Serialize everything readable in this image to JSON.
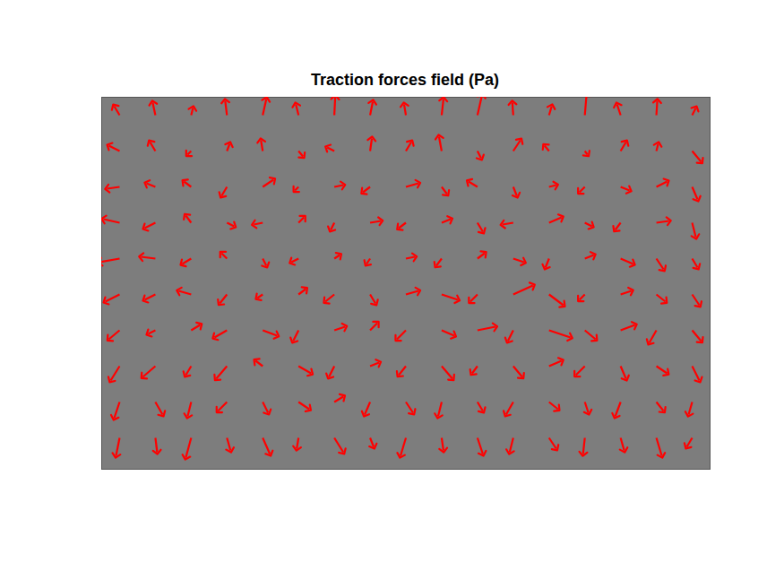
{
  "chart_data": {
    "type": "quiver",
    "title": "Traction forces field (Pa)",
    "color": "#ff0000",
    "tick_labels": false,
    "xlim": [
      0,
      680
    ],
    "ylim": [
      415,
      0
    ],
    "x": [
      20,
      60,
      100,
      140,
      180,
      220,
      260,
      300,
      340,
      380,
      420,
      460,
      500,
      540,
      580,
      620,
      660
    ],
    "y": [
      20,
      60,
      100,
      140,
      180,
      220,
      260,
      300,
      340,
      380
    ],
    "u": [
      [
        -6,
        -3,
        2,
        -2,
        4,
        -3,
        1,
        3,
        -2,
        2,
        5,
        -1,
        3,
        2,
        -4,
        1,
        4
      ],
      [
        -12,
        -6,
        -4,
        3,
        -2,
        5,
        -8,
        2,
        6,
        -3,
        4,
        8,
        -5,
        3,
        6,
        2,
        10
      ],
      [
        -14,
        -10,
        -8,
        -6,
        12,
        -4,
        10,
        -8,
        14,
        6,
        -10,
        4,
        8,
        -6,
        10,
        12,
        6
      ],
      [
        -18,
        -12,
        -6,
        8,
        -10,
        6,
        -4,
        12,
        -8,
        10,
        6,
        -12,
        14,
        8,
        -6,
        14,
        4
      ],
      [
        -22,
        -16,
        -10,
        -6,
        4,
        -8,
        6,
        -4,
        10,
        -6,
        8,
        12,
        -4,
        10,
        14,
        8,
        6
      ],
      [
        -16,
        -12,
        -14,
        -8,
        -6,
        8,
        -10,
        6,
        14,
        18,
        -8,
        22,
        16,
        -6,
        12,
        10,
        8
      ],
      [
        -12,
        -8,
        10,
        -14,
        16,
        -6,
        12,
        8,
        -10,
        14,
        20,
        -6,
        24,
        12,
        16,
        -8,
        10
      ],
      [
        -10,
        -14,
        -6,
        -12,
        -8,
        14,
        -6,
        10,
        -8,
        12,
        -6,
        10,
        14,
        -10,
        6,
        12,
        8
      ],
      [
        -6,
        8,
        -4,
        -10,
        6,
        12,
        10,
        -6,
        8,
        -4,
        6,
        -8,
        10,
        4,
        -6,
        8,
        -4
      ],
      [
        -4,
        2,
        -6,
        4,
        8,
        -2,
        10,
        4,
        -6,
        2,
        6,
        -4,
        8,
        -2,
        4,
        6,
        -6
      ]
    ],
    "v": [
      [
        -10,
        -14,
        -8,
        -16,
        -18,
        -12,
        -20,
        -15,
        -12,
        -18,
        -22,
        -14,
        -10,
        -24,
        -12,
        -16,
        -8
      ],
      [
        -6,
        -10,
        4,
        -8,
        -12,
        6,
        -4,
        -14,
        -10,
        -16,
        8,
        -12,
        -6,
        4,
        -10,
        -8,
        12
      ],
      [
        2,
        -4,
        -6,
        10,
        -8,
        4,
        -2,
        6,
        -4,
        8,
        -6,
        10,
        -2,
        6,
        4,
        -6,
        14
      ],
      [
        -4,
        6,
        -8,
        4,
        2,
        -6,
        8,
        -2,
        6,
        -4,
        10,
        2,
        -6,
        4,
        8,
        -2,
        16
      ],
      [
        4,
        -2,
        6,
        -6,
        8,
        4,
        -4,
        6,
        -2,
        8,
        -6,
        4,
        10,
        -4,
        6,
        12,
        10
      ],
      [
        8,
        6,
        -4,
        10,
        4,
        -6,
        8,
        10,
        -4,
        6,
        8,
        -10,
        12,
        6,
        -4,
        8,
        12
      ],
      [
        10,
        4,
        -6,
        8,
        6,
        12,
        -4,
        -8,
        10,
        6,
        -4,
        12,
        8,
        10,
        -6,
        14,
        12
      ],
      [
        16,
        12,
        10,
        14,
        -6,
        8,
        12,
        -4,
        10,
        14,
        8,
        12,
        -6,
        10,
        14,
        8,
        16
      ],
      [
        18,
        14,
        16,
        10,
        12,
        8,
        -6,
        14,
        12,
        16,
        10,
        14,
        8,
        12,
        16,
        10,
        14
      ],
      [
        20,
        16,
        22,
        14,
        18,
        12,
        16,
        10,
        20,
        14,
        18,
        16,
        12,
        18,
        14,
        20,
        10
      ]
    ]
  }
}
